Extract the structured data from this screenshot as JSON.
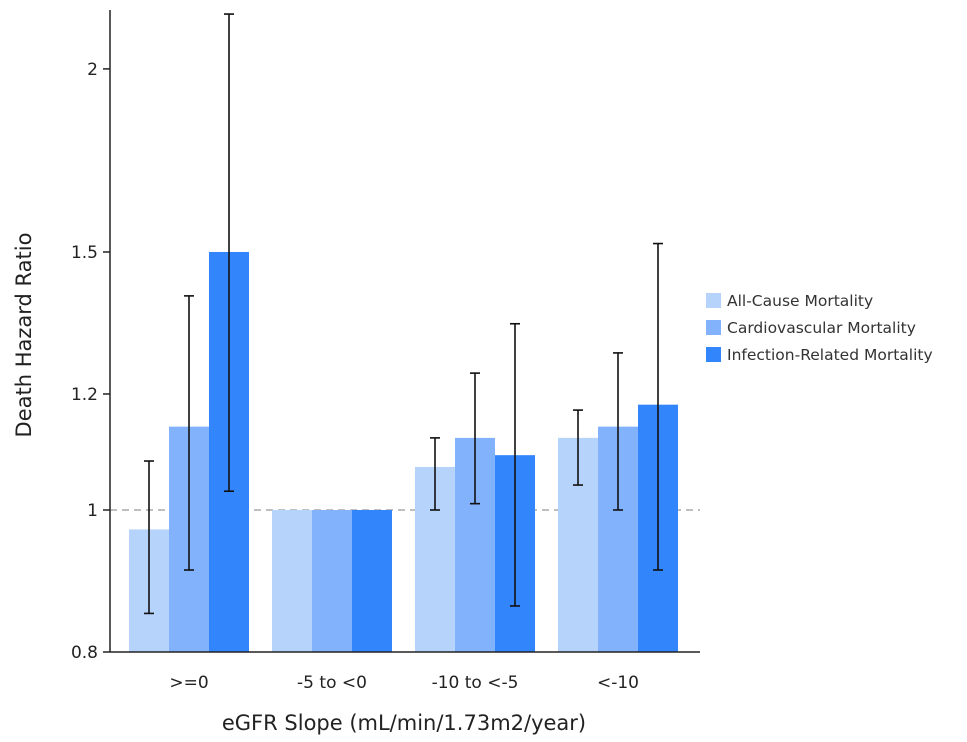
{
  "chart_data": {
    "type": "bar",
    "title": "",
    "xlabel": "eGFR Slope (mL/min/1.73m2/year)",
    "ylabel": "Death Hazard Ratio",
    "y_scale": "log",
    "ylim": [
      0.8,
      2.2
    ],
    "yticks": [
      0.8,
      1,
      1.2,
      1.5,
      2
    ],
    "ytick_labels": [
      "0.8",
      "1",
      "1.2",
      "1.5",
      "2"
    ],
    "reference_line": 1,
    "grid": false,
    "legend_position": "right",
    "categories": [
      ">=0",
      "-5 to <0",
      "-10 to <-5",
      "<-10"
    ],
    "series": [
      {
        "name": "All-Cause Mortality",
        "color": "#b6d3fc",
        "values": [
          0.97,
          1.0,
          1.07,
          1.12
        ],
        "ci_low": [
          0.85,
          null,
          1.0,
          1.04
        ],
        "ci_high": [
          1.08,
          null,
          1.12,
          1.17
        ]
      },
      {
        "name": "Cardiovascular Mortality",
        "color": "#82b2fb",
        "values": [
          1.14,
          1.0,
          1.12,
          1.14
        ],
        "ci_low": [
          0.91,
          null,
          1.01,
          1.0
        ],
        "ci_high": [
          1.4,
          null,
          1.24,
          1.28
        ]
      },
      {
        "name": "Infection-Related Mortality",
        "color": "#3385fb",
        "values": [
          1.5,
          1.0,
          1.09,
          1.18
        ],
        "ci_low": [
          1.03,
          null,
          0.86,
          0.91
        ],
        "ci_high": [
          2.18,
          null,
          1.34,
          1.52
        ]
      }
    ]
  }
}
